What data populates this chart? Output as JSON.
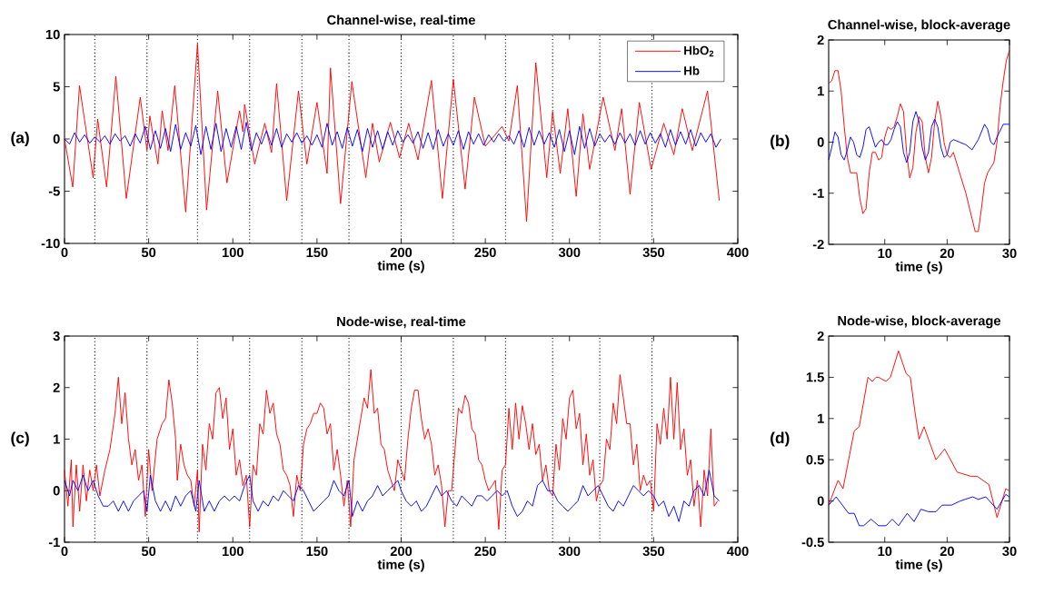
{
  "chart_data": [
    {
      "type": "line",
      "title": "Channel-wise, real-time",
      "xlabel": "time (s)",
      "annotations": [
        "(a)"
      ],
      "xlim": [
        0,
        400
      ],
      "ylim": [
        -10,
        10
      ],
      "xticks": [
        0,
        50,
        100,
        150,
        200,
        250,
        300,
        350,
        400
      ],
      "yticks": [
        -10,
        -5,
        0,
        5,
        10
      ],
      "legend": "top right",
      "ref_lines": [
        {
          "axis": "x",
          "value": 18,
          "color": "#000000",
          "line_style": "dotted"
        },
        {
          "axis": "x",
          "value": 49,
          "color": "#000000",
          "line_style": "dotted"
        },
        {
          "axis": "x",
          "value": 79,
          "color": "#000000",
          "line_style": "dotted"
        },
        {
          "axis": "x",
          "value": 110,
          "color": "#000000",
          "line_style": "dotted"
        },
        {
          "axis": "x",
          "value": 141,
          "color": "#000000",
          "line_style": "dotted"
        },
        {
          "axis": "x",
          "value": 169,
          "color": "#000000",
          "line_style": "dotted"
        },
        {
          "axis": "x",
          "value": 200,
          "color": "#000000",
          "line_style": "dotted"
        },
        {
          "axis": "x",
          "value": 231,
          "color": "#000000",
          "line_style": "dotted"
        },
        {
          "axis": "x",
          "value": 262,
          "color": "#000000",
          "line_style": "dotted"
        },
        {
          "axis": "x",
          "value": 290,
          "color": "#000000",
          "line_style": "dotted"
        },
        {
          "axis": "x",
          "value": 318,
          "color": "#000000",
          "line_style": "dotted"
        },
        {
          "axis": "x",
          "value": 349,
          "color": "#000000",
          "line_style": "dotted"
        }
      ],
      "series": [
        {
          "name": "HbO$_{2}$",
          "color": "#ff0000",
          "x": [
            0,
            4.9,
            8.9,
            17,
            19.7,
            25,
            30.5,
            36.7,
            45,
            49,
            50.7,
            55.5,
            58,
            61.5,
            65.5,
            72,
            79,
            84.4,
            91,
            96.5,
            104,
            106,
            107,
            113,
            119,
            123,
            126,
            132,
            139,
            144,
            150,
            156,
            158,
            164,
            170.7,
            179,
            183,
            187,
            193.6,
            199,
            204.5,
            210,
            218,
            224.5,
            231,
            238,
            243.5,
            250,
            260,
            264,
            269,
            274.5,
            280,
            286.5,
            290,
            294.5,
            299,
            304,
            308,
            312,
            320,
            327,
            331,
            336,
            341.5,
            348.5,
            356,
            362,
            367,
            373,
            382,
            389
          ],
          "values": [
            0,
            -4.6,
            5.1,
            -3.7,
            1.9,
            -4.6,
            6.0,
            -5.7,
            4.0,
            -1.1,
            2.2,
            -2.4,
            2.7,
            -1.1,
            5.1,
            -7.0,
            9.1,
            -6.8,
            4.6,
            -4.2,
            2.7,
            0.7,
            3.3,
            -2.4,
            1.5,
            -1.3,
            5.3,
            -5.9,
            4.6,
            -2.4,
            3.5,
            -3.3,
            6.8,
            -6.2,
            5.5,
            -3.7,
            1.5,
            -2.2,
            1.6,
            -1.8,
            1.5,
            -2.0,
            5.6,
            -5.7,
            5.7,
            -4.8,
            4.0,
            -0.7,
            1.2,
            -0.2,
            5.1,
            -7.9,
            7.3,
            -3.7,
            2.6,
            -3.3,
            2.9,
            -5.5,
            2.4,
            -2.9,
            4.0,
            -1.1,
            2.9,
            -5.3,
            3.5,
            -2.9,
            1.5,
            -1.5,
            2.9,
            -1.1,
            4.6,
            -5.9
          ]
        },
        {
          "name": "Hb",
          "color": "#0000ff",
          "x": [
            0,
            3,
            6,
            9,
            12,
            15,
            18,
            21,
            24,
            27,
            30,
            33,
            36,
            39,
            42,
            45,
            48,
            51,
            54,
            57,
            60,
            63,
            66,
            69,
            72,
            75,
            78,
            81,
            84,
            87,
            90,
            93,
            96,
            99,
            102,
            105,
            108,
            111,
            114,
            117,
            120,
            123,
            126,
            129,
            132,
            135,
            138,
            141,
            144,
            147,
            150,
            153,
            156,
            159,
            162,
            165,
            168,
            171,
            174,
            177,
            180,
            183,
            186,
            189,
            192,
            195,
            198,
            201,
            204,
            207,
            210,
            213,
            216,
            219,
            222,
            225,
            228,
            231,
            234,
            237,
            240,
            243,
            246,
            249,
            252,
            255,
            258,
            261,
            264,
            267,
            270,
            273,
            276,
            279,
            282,
            285,
            288,
            291,
            294,
            297,
            300,
            303,
            306,
            309,
            312,
            315,
            318,
            321,
            324,
            327,
            330,
            333,
            336,
            339,
            342,
            345,
            348,
            351,
            354,
            357,
            360,
            363,
            366,
            369,
            372,
            375,
            378,
            381,
            384,
            387,
            390
          ],
          "values": [
            0,
            -0.5,
            0.6,
            -0.3,
            0.4,
            -0.4,
            0.2,
            -0.3,
            0.3,
            -0.5,
            0.5,
            -0.2,
            0.3,
            -0.7,
            0.5,
            -0.4,
            1.2,
            -1.0,
            0.8,
            -0.9,
            1.0,
            -1.2,
            1.4,
            -1.0,
            0.6,
            -0.7,
            1.3,
            -1.5,
            1.2,
            -1.0,
            1.5,
            -1.2,
            1.0,
            -0.8,
            1.2,
            -1.0,
            1.6,
            -1.1,
            0.6,
            -0.5,
            0.8,
            -0.6,
            1.0,
            -0.8,
            0.5,
            -0.3,
            0.6,
            -0.4,
            0.3,
            -0.6,
            0.4,
            -0.8,
            1.5,
            -0.6,
            0.7,
            -0.9,
            1.1,
            -0.7,
            0.9,
            -1.2,
            1.0,
            -0.8,
            0.8,
            -1.0,
            0.7,
            -0.6,
            0.8,
            -0.3,
            0.4,
            -0.4,
            0.7,
            -0.9,
            0.6,
            -1.0,
            0.9,
            -0.7,
            0.5,
            -0.6,
            0.8,
            -1.0,
            0.7,
            -0.5,
            0.5,
            -0.6,
            0.4,
            -0.3,
            0.5,
            -0.2,
            0.3,
            -0.5,
            0.8,
            -0.8,
            1.1,
            -0.6,
            0.8,
            -0.5,
            0.6,
            -0.8,
            0.9,
            -1.2,
            0.8,
            -1.5,
            1.2,
            -0.9,
            1.0,
            -0.7,
            0.5,
            -0.3,
            0.4,
            -0.5,
            0.6,
            -0.4,
            0.5,
            -0.6,
            0.8,
            -0.5,
            0.6,
            -0.4,
            0.5,
            -0.8,
            0.9,
            -0.6,
            0.7,
            -0.5,
            0.9,
            -0.7,
            0.6,
            -0.3,
            0.5,
            -0.8,
            0.0
          ]
        }
      ]
    },
    {
      "type": "line",
      "title": "Channel-wise, block-average",
      "xlabel": "time (s)",
      "annotations": [
        "(b)"
      ],
      "xlim": [
        1,
        30
      ],
      "ylim": [
        -2,
        2
      ],
      "xticks": [
        10,
        20,
        30
      ],
      "yticks": [
        -2,
        -1,
        0,
        1,
        2
      ],
      "series": [
        {
          "color": "#ff0000",
          "x": [
            1,
            1.5,
            2,
            2.5,
            3,
            3.5,
            4,
            4.5,
            5,
            5.5,
            6,
            6.5,
            7,
            7.5,
            8,
            8.5,
            9,
            9.5,
            10,
            10.5,
            11,
            11.5,
            12,
            12.5,
            13,
            13.5,
            14,
            14.5,
            15,
            15.5,
            16,
            16.5,
            17,
            17.5,
            18,
            18.5,
            19,
            19.5,
            20,
            20.5,
            21,
            22,
            23,
            24,
            24.5,
            25,
            25.5,
            26,
            26.5,
            27,
            27.5,
            28,
            28.5,
            29,
            29.5,
            30
          ],
          "values": [
            1.15,
            1.2,
            1.4,
            1.4,
            1.0,
            0.3,
            -0.3,
            -0.6,
            -0.6,
            -0.6,
            -1.1,
            -1.4,
            -1.3,
            -0.6,
            -0.2,
            -0.2,
            -0.35,
            -0.3,
            0.1,
            0.3,
            0.25,
            0.3,
            0.5,
            0.75,
            0.6,
            -0.2,
            -0.7,
            -0.5,
            0.2,
            0.5,
            0.4,
            -0.3,
            -0.6,
            -0.3,
            0.4,
            0.8,
            0.5,
            0.0,
            -0.25,
            -0.3,
            -0.2,
            -0.6,
            -1.0,
            -1.5,
            -1.75,
            -1.75,
            -1.3,
            -0.8,
            -0.6,
            -0.5,
            -0.4,
            0.0,
            0.7,
            1.2,
            1.6,
            1.8
          ]
        },
        {
          "color": "#0000ff",
          "x": [
            1,
            1.5,
            2,
            2.5,
            3,
            3.5,
            4,
            4.5,
            5,
            5.5,
            6,
            6.5,
            7,
            7.5,
            8,
            8.5,
            9,
            9.5,
            10,
            10.5,
            11,
            11.5,
            12,
            12.5,
            13,
            13.5,
            14,
            14.5,
            15,
            15.5,
            16,
            16.5,
            17,
            17.5,
            18,
            18.5,
            19,
            19.5,
            20,
            20.5,
            21,
            22,
            23,
            24,
            25,
            26,
            26.5,
            27,
            27.5,
            28,
            29,
            30
          ],
          "values": [
            -0.35,
            -0.1,
            0.2,
            0.1,
            -0.25,
            -0.35,
            -0.15,
            0.1,
            0.0,
            -0.25,
            -0.3,
            -0.1,
            0.25,
            0.3,
            0.1,
            -0.1,
            0.0,
            0.05,
            -0.05,
            -0.05,
            0.05,
            0.25,
            0.4,
            0.3,
            -0.2,
            -0.4,
            -0.2,
            0.4,
            0.6,
            0.4,
            -0.1,
            -0.35,
            -0.2,
            0.3,
            0.45,
            0.3,
            -0.1,
            -0.3,
            -0.25,
            0.0,
            0.05,
            0.0,
            -0.05,
            -0.15,
            0.05,
            0.35,
            0.25,
            0.0,
            -0.05,
            0.1,
            0.35,
            0.35
          ]
        }
      ]
    },
    {
      "type": "line",
      "title": "Node-wise, real-time",
      "xlabel": "time (s)",
      "annotations": [
        "(c)"
      ],
      "xlim": [
        0,
        400
      ],
      "ylim": [
        -1,
        3
      ],
      "xticks": [
        0,
        50,
        100,
        150,
        200,
        250,
        300,
        350,
        400
      ],
      "yticks": [
        -1,
        0,
        1,
        2,
        3
      ],
      "ref_lines": [
        {
          "axis": "x",
          "value": 18,
          "color": "#000000",
          "line_style": "dotted"
        },
        {
          "axis": "x",
          "value": 49,
          "color": "#000000",
          "line_style": "dotted"
        },
        {
          "axis": "x",
          "value": 79,
          "color": "#000000",
          "line_style": "dotted"
        },
        {
          "axis": "x",
          "value": 110,
          "color": "#000000",
          "line_style": "dotted"
        },
        {
          "axis": "x",
          "value": 141,
          "color": "#000000",
          "line_style": "dotted"
        },
        {
          "axis": "x",
          "value": 169,
          "color": "#000000",
          "line_style": "dotted"
        },
        {
          "axis": "x",
          "value": 200,
          "color": "#000000",
          "line_style": "dotted"
        },
        {
          "axis": "x",
          "value": 231,
          "color": "#000000",
          "line_style": "dotted"
        },
        {
          "axis": "x",
          "value": 262,
          "color": "#000000",
          "line_style": "dotted"
        },
        {
          "axis": "x",
          "value": 290,
          "color": "#000000",
          "line_style": "dotted"
        },
        {
          "axis": "x",
          "value": 318,
          "color": "#000000",
          "line_style": "dotted"
        },
        {
          "axis": "x",
          "value": 349,
          "color": "#000000",
          "line_style": "dotted"
        }
      ],
      "series": [
        {
          "color": "#ff0000",
          "x": [
            0,
            2,
            4,
            5,
            7,
            9,
            11,
            13,
            15,
            17,
            19,
            21,
            24,
            27,
            30,
            32,
            34,
            36,
            38,
            40,
            42,
            44,
            46,
            48,
            50,
            52,
            55,
            58,
            60,
            62,
            64,
            66,
            67,
            69,
            71,
            73,
            75,
            77,
            79,
            80,
            82,
            84,
            86,
            88,
            90,
            92,
            94,
            96,
            98,
            100,
            102,
            104,
            106,
            108,
            110,
            112,
            114,
            116,
            118,
            120,
            122,
            124,
            126,
            128,
            130,
            132,
            134,
            136,
            138,
            140,
            142,
            144,
            146,
            148,
            150,
            152,
            154,
            156,
            158,
            160,
            162,
            164,
            166,
            168,
            170,
            172,
            174,
            176,
            178,
            180,
            182,
            184,
            186,
            188,
            190,
            192,
            194,
            196,
            198,
            200,
            202,
            204,
            206,
            208,
            210,
            212,
            214,
            216,
            218,
            220,
            222,
            224,
            226,
            228,
            230,
            232,
            234,
            236,
            238,
            240,
            242,
            244,
            246,
            248,
            250,
            252,
            254,
            256,
            258,
            260,
            262,
            264,
            266,
            268,
            270,
            272,
            274,
            276,
            278,
            280,
            282,
            284,
            286,
            288,
            290,
            292,
            294,
            296,
            298,
            300,
            302,
            304,
            306,
            308,
            310,
            312,
            314,
            316,
            318,
            320,
            322,
            324,
            326,
            328,
            330,
            332,
            334,
            336,
            338,
            340,
            342,
            344,
            346,
            348,
            350,
            352,
            354,
            356,
            358,
            360,
            362,
            364,
            366,
            368,
            370,
            372,
            374,
            376,
            378,
            380,
            382,
            384,
            386,
            388
          ],
          "values": [
            0.4,
            -0.3,
            0.6,
            -0.7,
            0.5,
            -0.4,
            0.5,
            -0.2,
            0.4,
            0.0,
            0.5,
            -0.1,
            0.4,
            0.8,
            1.5,
            2.2,
            1.3,
            1.9,
            1.0,
            0.5,
            0.8,
            0.2,
            0.5,
            -0.5,
            0.8,
            0.0,
            1.0,
            1.3,
            1.4,
            2.15,
            1.7,
            1.0,
            0.2,
            0.9,
            0.5,
            0.3,
            0.2,
            -0.3,
            0.4,
            -0.8,
            0.9,
            0.4,
            1.3,
            1.0,
            1.9,
            2.0,
            1.4,
            1.8,
            0.8,
            1.2,
            0.3,
            0.6,
            0.1,
            0.3,
            -0.7,
            0.5,
            0.3,
            1.3,
            1.1,
            1.95,
            1.5,
            1.7,
            1.1,
            0.9,
            0.4,
            0.3,
            0.1,
            -0.5,
            0.3,
            0.0,
            0.9,
            1.2,
            1.3,
            1.5,
            1.5,
            1.7,
            1.6,
            1.1,
            1.3,
            0.4,
            0.8,
            0.3,
            -0.3,
            0.2,
            -0.7,
            0.6,
            1.0,
            1.4,
            1.8,
            1.6,
            2.35,
            1.5,
            1.6,
            0.9,
            0.8,
            0.4,
            0.2,
            0.0,
            0.6,
            0.4,
            0.2,
            1.0,
            1.6,
            1.95,
            1.95,
            1.4,
            1.0,
            1.2,
            0.9,
            0.3,
            0.5,
            0.1,
            -0.7,
            0.0,
            0.0,
            0.8,
            1.6,
            1.5,
            1.85,
            1.7,
            1.2,
            1.1,
            0.6,
            0.5,
            0.2,
            0.0,
            0.1,
            0.2,
            -0.75,
            0.4,
            0.5,
            1.6,
            0.8,
            1.7,
            1.0,
            1.65,
            1.3,
            0.8,
            1.3,
            0.7,
            0.9,
            0.2,
            0.5,
            0.0,
            -0.1,
            0.9,
            0.4,
            1.4,
            1.0,
            1.8,
            1.95,
            1.2,
            1.5,
            0.5,
            1.1,
            0.3,
            0.6,
            -0.2,
            0.1,
            0.2,
            1.0,
            0.8,
            1.7,
            1.3,
            2.25,
            1.8,
            1.3,
            1.3,
            0.5,
            0.9,
            0.0,
            0.3,
            0.1,
            0.2,
            -0.4,
            1.3,
            0.9,
            1.6,
            1.0,
            2.2,
            1.0,
            2.1,
            0.8,
            1.2,
            0.3,
            0.6,
            -0.3,
            0.2,
            -0.7,
            0.4,
            -0.1,
            1.2,
            -0.3,
            -0.2
          ]
        },
        {
          "color": "#0000ff",
          "x": [
            0,
            3,
            5,
            8,
            11,
            14,
            17,
            20,
            23,
            26,
            29,
            32,
            35,
            38,
            41,
            44,
            47,
            49,
            51,
            54,
            57,
            60,
            63,
            66,
            69,
            72,
            75,
            78,
            80,
            83,
            86,
            89,
            92,
            95,
            98,
            101,
            104,
            107,
            110,
            112,
            115,
            118,
            121,
            124,
            127,
            130,
            133,
            136,
            139,
            142,
            145,
            148,
            151,
            154,
            157,
            160,
            163,
            166,
            169,
            171,
            174,
            177,
            180,
            183,
            186,
            189,
            192,
            195,
            198,
            200,
            203,
            206,
            209,
            212,
            215,
            218,
            221,
            224,
            227,
            230,
            233,
            236,
            239,
            242,
            245,
            248,
            251,
            254,
            257,
            260,
            263,
            266,
            269,
            272,
            275,
            278,
            281,
            284,
            287,
            290,
            293,
            296,
            299,
            302,
            305,
            308,
            311,
            314,
            317,
            320,
            323,
            326,
            329,
            332,
            335,
            338,
            341,
            344,
            347,
            350,
            353,
            356,
            359,
            362,
            365,
            368,
            371,
            374,
            377,
            380,
            383,
            386,
            389
          ],
          "values": [
            0.2,
            -0.1,
            0.2,
            0.0,
            0.3,
            0.0,
            0.2,
            -0.1,
            -0.3,
            -0.3,
            -0.2,
            -0.4,
            -0.2,
            -0.4,
            -0.2,
            -0.1,
            0.0,
            -0.4,
            0.3,
            -0.2,
            -0.4,
            -0.2,
            -0.4,
            -0.1,
            -0.3,
            -0.1,
            0.0,
            -0.4,
            0.2,
            -0.4,
            -0.2,
            -0.4,
            -0.2,
            -0.1,
            -0.2,
            -0.1,
            -0.2,
            0.1,
            0.3,
            -0.2,
            -0.4,
            -0.2,
            -0.3,
            -0.1,
            -0.2,
            0.0,
            -0.1,
            -0.2,
            0.1,
            0.0,
            -0.2,
            -0.4,
            -0.3,
            -0.2,
            -0.1,
            0.2,
            0.0,
            -0.1,
            0.2,
            -0.5,
            -0.2,
            -0.4,
            -0.2,
            -0.1,
            0.1,
            -0.1,
            0.0,
            0.1,
            0.2,
            0.0,
            -0.2,
            -0.3,
            -0.2,
            -0.4,
            -0.3,
            -0.1,
            0.1,
            -0.1,
            0.0,
            -0.2,
            -0.3,
            -0.1,
            -0.2,
            -0.3,
            -0.1,
            -0.1,
            -0.2,
            -0.1,
            0.0,
            -0.1,
            0.0,
            -0.3,
            -0.5,
            -0.4,
            -0.2,
            -0.3,
            0.1,
            0.2,
            0.0,
            0.0,
            -0.2,
            -0.3,
            -0.4,
            -0.3,
            -0.2,
            0.1,
            -0.1,
            0.0,
            0.1,
            -0.1,
            -0.3,
            -0.4,
            -0.2,
            -0.3,
            -0.1,
            0.1,
            0.0,
            -0.1,
            0.0,
            -0.1,
            -0.3,
            -0.2,
            -0.5,
            -0.3,
            -0.6,
            -0.2,
            -0.3,
            0.0,
            0.1,
            -0.1,
            0.4,
            -0.1,
            -0.2
          ]
        }
      ]
    },
    {
      "type": "line",
      "title": "Node-wise, block-average",
      "xlabel": "time (s)",
      "annotations": [
        "(d)"
      ],
      "xlim": [
        1,
        30
      ],
      "ylim": [
        -0.5,
        2
      ],
      "xticks": [
        10,
        20,
        30
      ],
      "yticks": [
        -0.5,
        0,
        0.5,
        1,
        1.5,
        2
      ],
      "series": [
        {
          "color": "#ff0000",
          "x": [
            1,
            2.5,
            3.3,
            5.1,
            5.9,
            7.3,
            8.0,
            8.6,
            9.0,
            10.2,
            10.9,
            12.2,
            13.4,
            14.1,
            14.8,
            15.5,
            16.3,
            17.0,
            18.2,
            19.6,
            20.2,
            21.6,
            23.8,
            24.8,
            26.7,
            28.0,
            29.4,
            30
          ],
          "values": [
            -0.05,
            0.25,
            0.15,
            0.85,
            0.9,
            1.5,
            1.45,
            1.5,
            1.5,
            1.45,
            1.5,
            1.82,
            1.55,
            1.5,
            1.1,
            0.75,
            0.9,
            0.75,
            0.5,
            0.63,
            0.55,
            0.35,
            0.3,
            0.3,
            0.2,
            -0.2,
            0.15,
            0.12
          ]
        },
        {
          "color": "#0000ff",
          "x": [
            1,
            2.2,
            3.2,
            4.2,
            5.1,
            5.9,
            6.6,
            7.8,
            9.0,
            10.2,
            11.2,
            12.2,
            13.6,
            14.7,
            15.8,
            17.0,
            18.2,
            19.2,
            20.7,
            22.1,
            24.1,
            25.0,
            26.2,
            28.0,
            29.4,
            30
          ],
          "values": [
            -0.05,
            0.05,
            -0.05,
            -0.15,
            -0.15,
            -0.3,
            -0.3,
            -0.22,
            -0.3,
            -0.3,
            -0.22,
            -0.3,
            -0.15,
            -0.25,
            -0.1,
            -0.13,
            -0.13,
            -0.05,
            -0.05,
            0.0,
            0.05,
            0.02,
            0.05,
            -0.1,
            0.08,
            0.05
          ]
        }
      ]
    }
  ]
}
